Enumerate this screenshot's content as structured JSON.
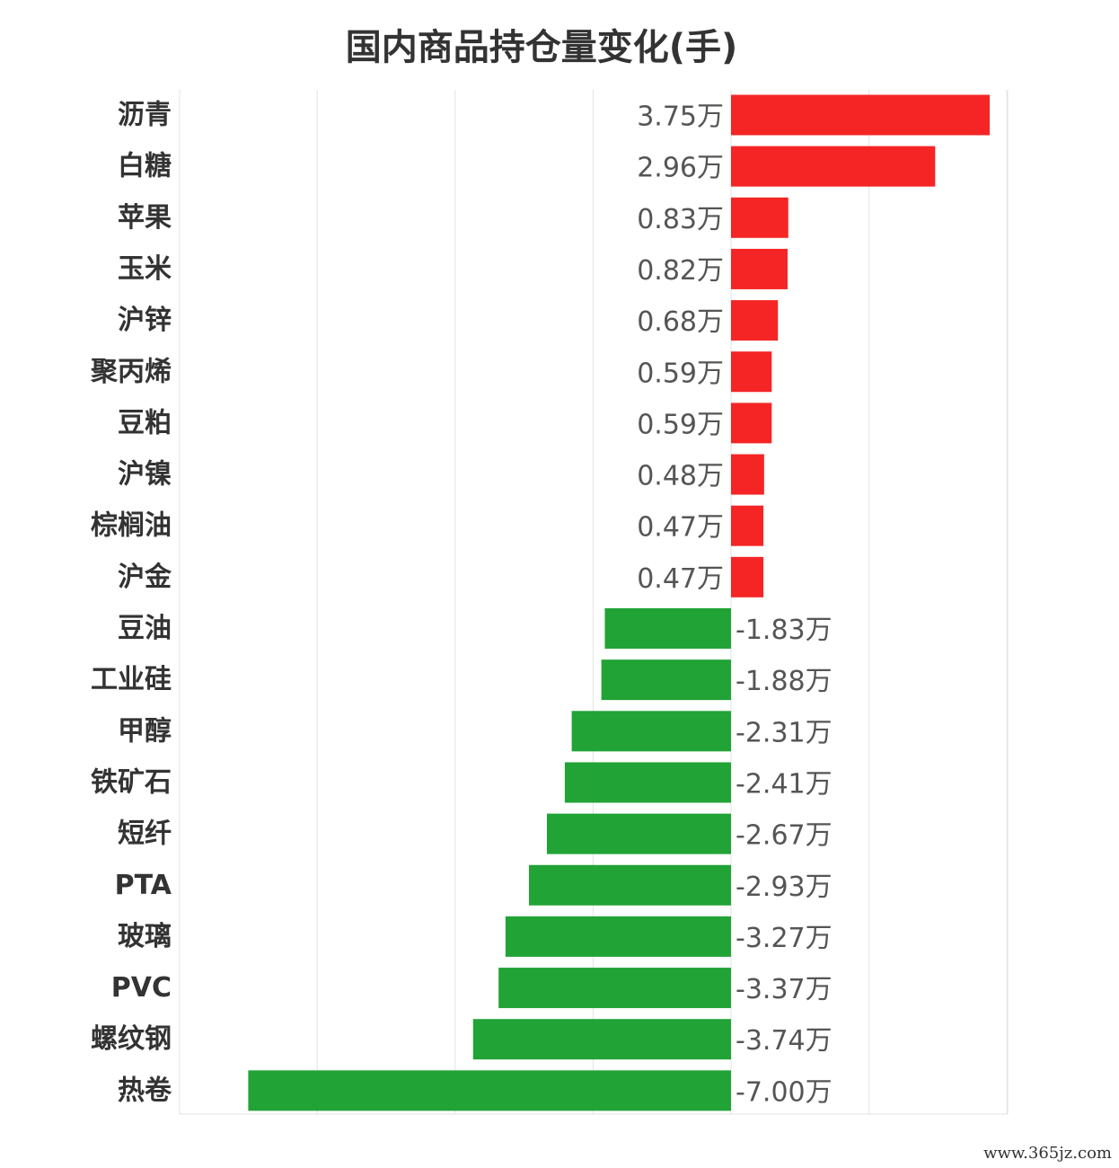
{
  "chart_data": {
    "type": "bar",
    "orientation": "horizontal",
    "title": "国内商品持仓量变化(手)",
    "unit": "万",
    "categories": [
      "沥青",
      "白糖",
      "苹果",
      "玉米",
      "沪锌",
      "聚丙烯",
      "豆粕",
      "沪镍",
      "棕榈油",
      "沪金",
      "豆油",
      "工业硅",
      "甲醇",
      "铁矿石",
      "短纤",
      "PTA",
      "玻璃",
      "PVC",
      "螺纹钢",
      "热卷"
    ],
    "values": [
      3.75,
      2.96,
      0.83,
      0.82,
      0.68,
      0.59,
      0.59,
      0.48,
      0.47,
      0.47,
      -1.83,
      -1.88,
      -2.31,
      -2.41,
      -2.67,
      -2.93,
      -3.27,
      -3.37,
      -3.74,
      -7.0
    ],
    "value_labels": [
      "3.75万",
      "2.96万",
      "0.83万",
      "0.82万",
      "0.68万",
      "0.59万",
      "0.59万",
      "0.48万",
      "0.47万",
      "0.47万",
      "-1.83万",
      "-1.88万",
      "-2.31万",
      "-2.41万",
      "-2.67万",
      "-2.93万",
      "-3.27万",
      "-3.37万",
      "-3.74万",
      "-7.00万"
    ],
    "xlim": [
      -8,
      4
    ],
    "grid": true,
    "legend": "none",
    "colors": {
      "positive": "#f52525",
      "negative": "#21a336",
      "grid": "#e3e3e3"
    }
  },
  "watermark": "www.365jz.com"
}
